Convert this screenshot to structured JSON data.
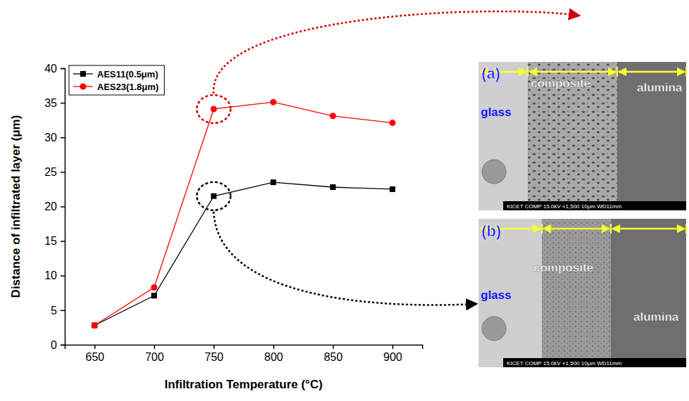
{
  "chart_data": {
    "type": "line",
    "x_label": "Infiltration Temperature (°C)",
    "y_label": "Distance of infiltrated layer (μm)",
    "x": [
      650,
      700,
      750,
      800,
      850,
      900
    ],
    "xlim": [
      625,
      925
    ],
    "xticks": [
      650,
      700,
      750,
      800,
      850,
      900
    ],
    "ylim": [
      0,
      40
    ],
    "yticks": [
      0,
      5,
      10,
      15,
      20,
      25,
      30,
      35,
      40
    ],
    "legend": "top-left",
    "grid": false,
    "series": [
      {
        "name": "AES11(0.5μm)",
        "color": "#000000",
        "marker": "square",
        "line_style": "solid",
        "values": [
          2.8,
          7.1,
          21.5,
          23.5,
          22.8,
          22.5
        ]
      },
      {
        "name": "AES23(1.8μm)",
        "color": "#ff0000",
        "marker": "circle",
        "line_style": "solid",
        "values": [
          2.8,
          8.3,
          34.1,
          35.1,
          33.1,
          32.1
        ]
      }
    ]
  },
  "micrographs": [
    {
      "letter": "(a)",
      "regions": [
        "glass",
        "composite",
        "alumina"
      ],
      "caption": "KICET COMP 15.0kV ×1,500 10μm WD11mm"
    },
    {
      "letter": "(b)",
      "regions": [
        "glass",
        "composite",
        "alumina"
      ],
      "caption": "KICET COMP 15.0kV ×1,500 10μm WD11mm"
    }
  ]
}
